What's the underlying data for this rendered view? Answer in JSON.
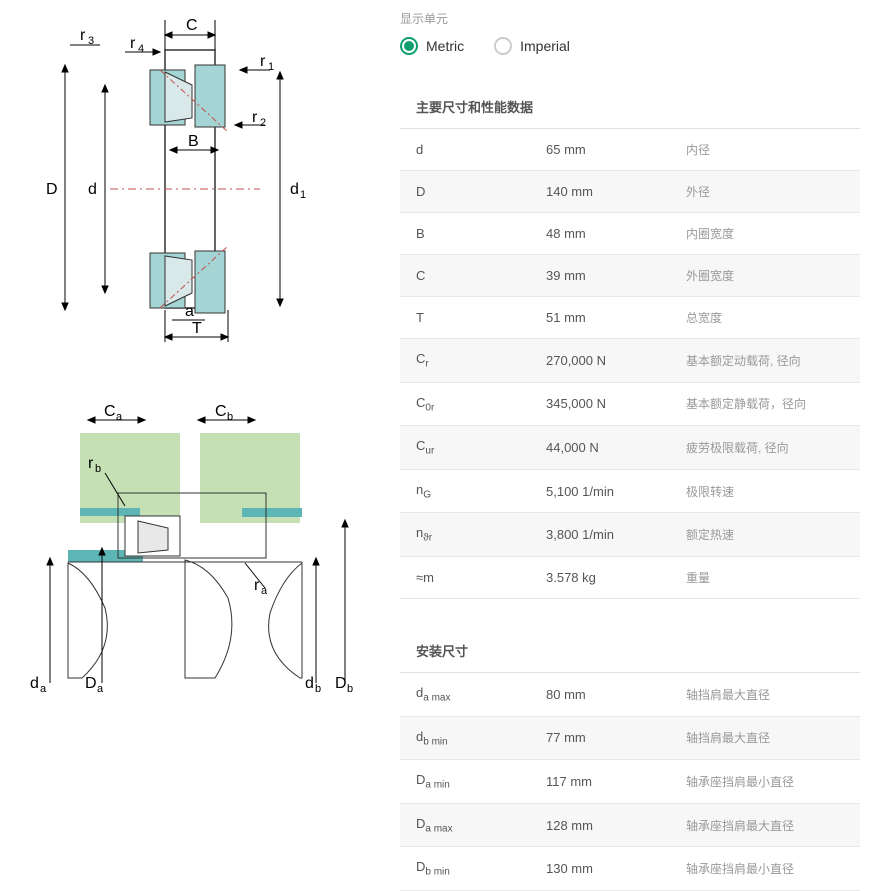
{
  "units": {
    "label": "显示单元",
    "metric": "Metric",
    "imperial": "Imperial",
    "selected": "metric"
  },
  "sections": {
    "main": {
      "title": "主要尺寸和性能数据",
      "rows": [
        {
          "sym": "d",
          "val": "65 mm",
          "desc": "内径"
        },
        {
          "sym": "D",
          "val": "140 mm",
          "desc": "外径"
        },
        {
          "sym": "B",
          "val": "48 mm",
          "desc": "内圈宽度"
        },
        {
          "sym": "C",
          "val": "39 mm",
          "desc": "外圈宽度"
        },
        {
          "sym": "T",
          "val": "51 mm",
          "desc": "总宽度"
        },
        {
          "sym": "C<sub>r</sub>",
          "val": "270,000 N",
          "desc": "基本额定动载荷, 径向"
        },
        {
          "sym": "C<sub>0r</sub>",
          "val": "345,000 N",
          "desc": "基本额定静载荷，径向"
        },
        {
          "sym": "C<sub>ur</sub>",
          "val": "44,000 N",
          "desc": "疲劳极限载荷, 径向"
        },
        {
          "sym": "n<sub>G</sub>",
          "val": "5,100 1/min",
          "desc": "极限转速"
        },
        {
          "sym": "n<sub>ϑr</sub>",
          "val": "3,800 1/min",
          "desc": "额定热速"
        },
        {
          "sym": "≈m",
          "val": "3.578 kg",
          "desc": "重量"
        }
      ]
    },
    "mounting": {
      "title": "安装尺寸",
      "rows": [
        {
          "sym": "d<sub>a max</sub>",
          "val": "80 mm",
          "desc": "轴挡肩最大直径"
        },
        {
          "sym": "d<sub>b min</sub>",
          "val": "77 mm",
          "desc": "轴挡肩最大直径"
        },
        {
          "sym": "D<sub>a min</sub>",
          "val": "117 mm",
          "desc": "轴承座挡肩最小直径"
        },
        {
          "sym": "D<sub>a max</sub>",
          "val": "128 mm",
          "desc": "轴承座挡肩最大直径"
        },
        {
          "sym": "D<sub>b min</sub>",
          "val": "130 mm",
          "desc": "轴承座挡肩最小直径"
        }
      ]
    }
  },
  "diagram1": {
    "labels": [
      "r3",
      "r4",
      "C",
      "r1",
      "r2",
      "B",
      "D",
      "d",
      "d1",
      "a",
      "T"
    ],
    "colors": {
      "fill": "#a4d4d4",
      "stroke": "#333",
      "centerline": "#c0504d"
    }
  },
  "diagram2": {
    "labels": [
      "Ca",
      "Cb",
      "rb",
      "ra",
      "da",
      "Da",
      "db",
      "Db"
    ],
    "colors": {
      "bg": "#c5e0b4",
      "teal": "#5eb5b5"
    }
  }
}
